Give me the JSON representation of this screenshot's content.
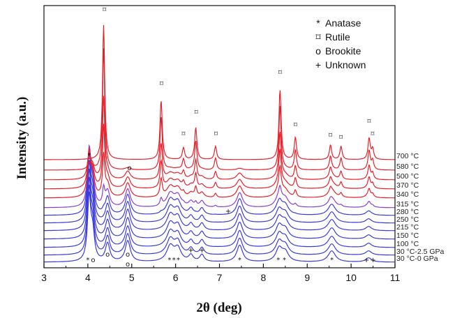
{
  "chart_data": {
    "type": "line",
    "xlabel": "2θ (deg)",
    "ylabel": "Intensity (a.u.)",
    "xlim": [
      3,
      11
    ],
    "xticks": [
      "3",
      "4",
      "5",
      "6",
      "7",
      "8",
      "9",
      "10",
      "11"
    ],
    "legend_position": "top-right",
    "legend": [
      {
        "glyph": "*",
        "label": "Anatase"
      },
      {
        "glyph": "⌑",
        "label": "Rutile"
      },
      {
        "glyph": "o",
        "label": "Brookite"
      },
      {
        "glyph": "+",
        "label": "Unknown"
      }
    ],
    "colors": {
      "red": "#e8202a",
      "purple": "#8c3fd0",
      "blue": "#3b3be0"
    },
    "series": [
      {
        "name": "30 °C-0 GPa",
        "color": "blue",
        "phase": "brookite"
      },
      {
        "name": "30 °C-2.5 GPa",
        "color": "blue",
        "phase": "brookite"
      },
      {
        "name": "100 °C",
        "color": "blue",
        "phase": "brookite"
      },
      {
        "name": "150 °C",
        "color": "blue",
        "phase": "brookite"
      },
      {
        "name": "215 °C",
        "color": "blue",
        "phase": "brookite"
      },
      {
        "name": "250 °C",
        "color": "blue",
        "phase": "brookite"
      },
      {
        "name": "280 °C",
        "color": "blue",
        "phase": "brookite"
      },
      {
        "name": "315 °C",
        "color": "purple",
        "phase": "mixed"
      },
      {
        "name": "340 °C",
        "color": "red",
        "phase": "mixed"
      },
      {
        "name": "370 °C",
        "color": "red",
        "phase": "mixed"
      },
      {
        "name": "500 °C",
        "color": "red",
        "phase": "mixed"
      },
      {
        "name": "580 °C",
        "color": "red",
        "phase": "rutile"
      },
      {
        "name": "700 °C",
        "color": "red",
        "phase": "rutile"
      }
    ],
    "annotations": {
      "rutile_peaks": [
        4.38,
        5.68,
        6.18,
        6.47,
        6.92,
        8.38,
        8.73,
        9.53,
        9.77,
        10.41,
        10.49
      ],
      "anatase_top": [
        4.03
      ],
      "brookite_top": [
        4.95
      ],
      "unknown_mid": [
        7.2
      ],
      "bottom_markers": [
        {
          "x": 4.0,
          "glyph": "*"
        },
        {
          "x": 4.12,
          "glyph": "o"
        },
        {
          "x": 4.45,
          "glyph": "o"
        },
        {
          "x": 4.91,
          "glyph": "o"
        },
        {
          "x": 4.91,
          "glyph": "o",
          "row": 2
        },
        {
          "x": 5.86,
          "glyph": "*"
        },
        {
          "x": 5.96,
          "glyph": "*"
        },
        {
          "x": 6.06,
          "glyph": "*"
        },
        {
          "x": 6.35,
          "glyph": "+"
        },
        {
          "x": 6.6,
          "glyph": "+"
        },
        {
          "x": 7.46,
          "glyph": "*"
        },
        {
          "x": 8.34,
          "glyph": "*"
        },
        {
          "x": 8.48,
          "glyph": "*"
        },
        {
          "x": 9.56,
          "glyph": "*"
        },
        {
          "x": 10.35,
          "glyph": "+"
        },
        {
          "x": 10.5,
          "glyph": "+"
        }
      ]
    }
  }
}
